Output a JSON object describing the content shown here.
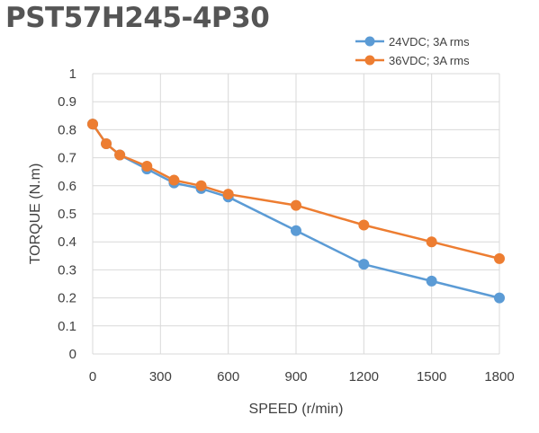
{
  "chart_data": {
    "type": "line",
    "title": "PST57H245-4P30",
    "xlabel": "SPEED (r/min)",
    "ylabel": "TORQUE (N.m)",
    "xlim": [
      0,
      1800
    ],
    "ylim": [
      0,
      1
    ],
    "xticks": [
      0,
      300,
      600,
      900,
      1200,
      1500,
      1800
    ],
    "yticks": [
      0,
      0.1,
      0.2,
      0.3,
      0.4,
      0.5,
      0.6,
      0.7,
      0.8,
      0.9,
      1
    ],
    "grid": true,
    "legend_position": "top-right",
    "series": [
      {
        "name": "24VDC; 3A rms",
        "color": "#5b9bd5",
        "x": [
          0,
          60,
          120,
          240,
          360,
          480,
          600,
          900,
          1200,
          1500,
          1800
        ],
        "y": [
          0.82,
          0.75,
          0.71,
          0.66,
          0.61,
          0.59,
          0.56,
          0.44,
          0.32,
          0.26,
          0.2
        ]
      },
      {
        "name": "36VDC; 3A rms",
        "color": "#ed7d31",
        "x": [
          0,
          60,
          120,
          240,
          360,
          480,
          600,
          900,
          1200,
          1500,
          1800
        ],
        "y": [
          0.82,
          0.75,
          0.71,
          0.67,
          0.62,
          0.6,
          0.57,
          0.53,
          0.46,
          0.4,
          0.34
        ]
      }
    ]
  }
}
